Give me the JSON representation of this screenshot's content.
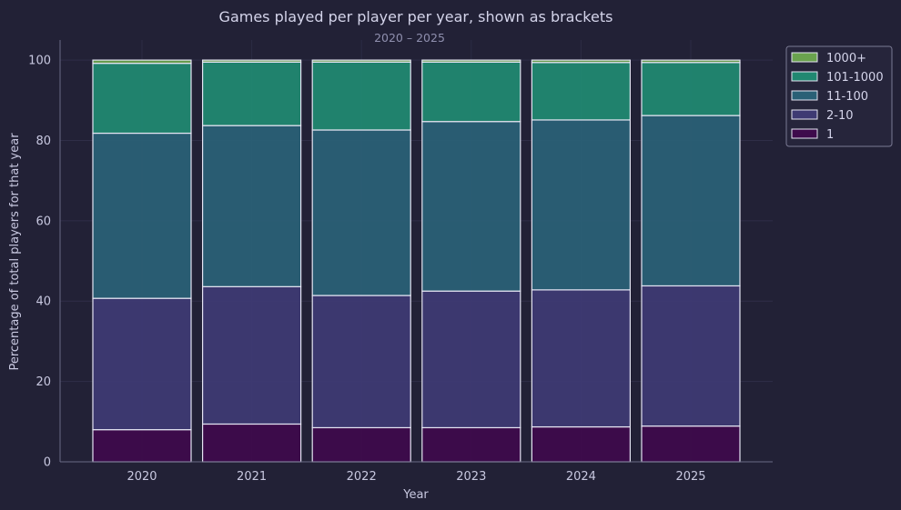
{
  "chart_data": {
    "type": "bar",
    "stacked": true,
    "title": "Games played per player per year, shown as brackets",
    "subtitle": "2020 – 2025",
    "xlabel": "Year",
    "ylabel": "Percentage of total players for that year",
    "categories": [
      "2020",
      "2021",
      "2022",
      "2023",
      "2024",
      "2025"
    ],
    "ylim": [
      0,
      105
    ],
    "yticks": [
      0,
      20,
      40,
      60,
      80,
      100
    ],
    "grid": true,
    "legend_position": "outside-top-right",
    "series": [
      {
        "name": "1",
        "color": "#3e0b4c",
        "values": [
          8.0,
          9.4,
          8.5,
          8.5,
          8.7,
          8.9
        ]
      },
      {
        "name": "2-10",
        "color": "#3e3a73",
        "values": [
          32.7,
          34.2,
          32.9,
          34.0,
          34.1,
          34.9
        ]
      },
      {
        "name": "11-100",
        "color": "#2a6076",
        "values": [
          41.1,
          40.1,
          41.2,
          42.2,
          42.3,
          42.4
        ]
      },
      {
        "name": "101-1000",
        "color": "#218871",
        "values": [
          17.4,
          15.8,
          16.9,
          14.8,
          14.3,
          13.2
        ]
      },
      {
        "name": "1000+",
        "color": "#6aa24e",
        "values": [
          0.8,
          0.5,
          0.5,
          0.5,
          0.6,
          0.6
        ]
      }
    ],
    "legend_order": [
      "1000+",
      "101-1000",
      "11-100",
      "2-10",
      "1"
    ]
  }
}
